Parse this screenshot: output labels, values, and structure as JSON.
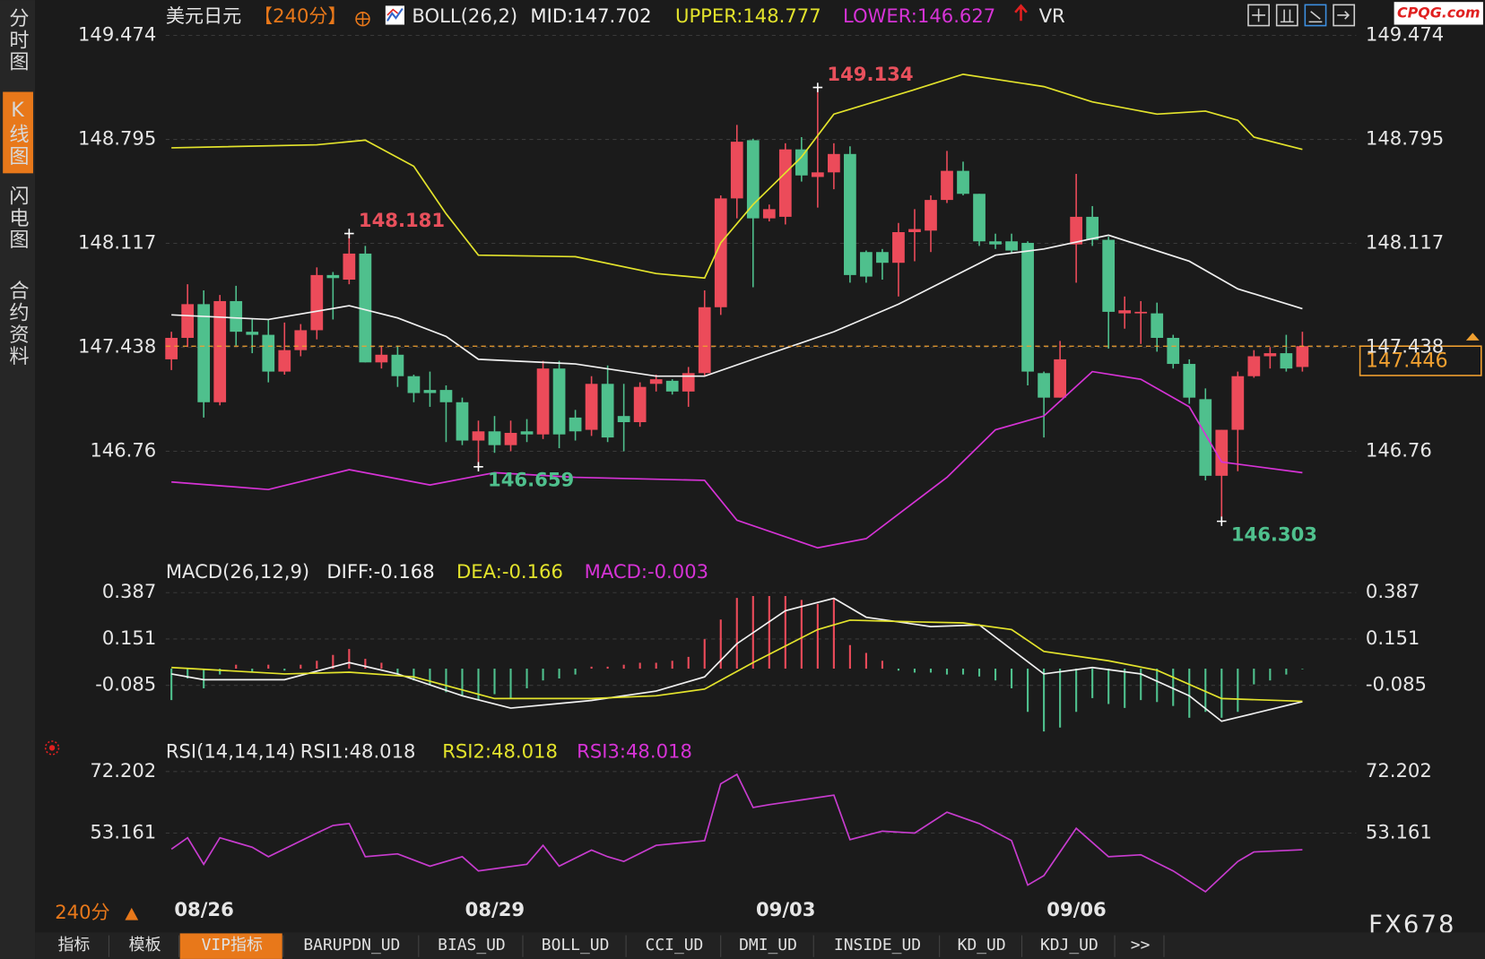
{
  "header": {
    "watermark": "CPQG.com",
    "brand": "FX678",
    "period_selector": "240分"
  },
  "sidebar": [
    "分时图",
    "K线图",
    "闪电图",
    "合约资料"
  ],
  "tabs": [
    "指标",
    "模板",
    "VIP指标",
    "BARUPDN_UD",
    "BIAS_UD",
    "BOLL_UD",
    "CCI_UD",
    "DMI_UD",
    "INSIDE_UD",
    "KD_UD",
    "KDJ_UD",
    ">>"
  ],
  "chart_data": [
    {
      "type": "candlestick",
      "title": "美元日元",
      "period": "【240分】",
      "indicator": "BOLL(26,2)",
      "extra": "VR",
      "up_color": "#ec4b5a",
      "down_color": "#4fc08d",
      "categories": [
        "08/26",
        null,
        null,
        null,
        null,
        null,
        null,
        null,
        null,
        null,
        null,
        null,
        null,
        null,
        null,
        null,
        null,
        null,
        "08/29",
        null,
        null,
        null,
        null,
        null,
        null,
        null,
        null,
        null,
        null,
        null,
        null,
        null,
        null,
        null,
        null,
        null,
        "09/03",
        null,
        null,
        null,
        null,
        null,
        null,
        null,
        null,
        null,
        null,
        null,
        null,
        null,
        null,
        null,
        null,
        null,
        "09/06",
        null,
        null,
        null,
        null,
        null,
        null,
        null,
        null,
        null,
        null,
        null,
        null,
        null,
        null,
        null,
        null
      ],
      "ohlc": [
        [
          147.36,
          147.54,
          147.29,
          147.5
        ],
        [
          147.5,
          147.85,
          147.44,
          147.72
        ],
        [
          147.72,
          147.81,
          146.98,
          147.08
        ],
        [
          147.08,
          147.78,
          147.06,
          147.74
        ],
        [
          147.74,
          147.84,
          147.45,
          147.54
        ],
        [
          147.54,
          147.62,
          147.4,
          147.52
        ],
        [
          147.52,
          147.62,
          147.21,
          147.28
        ],
        [
          147.28,
          147.6,
          147.26,
          147.42
        ],
        [
          147.42,
          147.59,
          147.38,
          147.55
        ],
        [
          147.55,
          147.96,
          147.49,
          147.91
        ],
        [
          147.91,
          147.93,
          147.62,
          147.89
        ],
        [
          147.88,
          148.181,
          147.85,
          148.05
        ],
        [
          148.05,
          148.1,
          147.34,
          147.34
        ],
        [
          147.34,
          147.45,
          147.3,
          147.39
        ],
        [
          147.39,
          147.45,
          147.18,
          147.25
        ],
        [
          147.25,
          147.26,
          147.08,
          147.14
        ],
        [
          147.16,
          147.28,
          147.05,
          147.14
        ],
        [
          147.16,
          147.19,
          146.82,
          147.08
        ],
        [
          147.08,
          147.11,
          146.8,
          146.83
        ],
        [
          146.83,
          146.96,
          146.659,
          146.89
        ],
        [
          146.89,
          146.99,
          146.75,
          146.8
        ],
        [
          146.8,
          146.96,
          146.76,
          146.88
        ],
        [
          146.89,
          146.97,
          146.82,
          146.87
        ],
        [
          146.87,
          147.35,
          146.84,
          147.3
        ],
        [
          147.3,
          147.35,
          146.78,
          146.87
        ],
        [
          146.98,
          147.03,
          146.83,
          146.89
        ],
        [
          146.9,
          147.25,
          146.86,
          147.2
        ],
        [
          147.2,
          147.32,
          146.82,
          146.85
        ],
        [
          146.99,
          147.2,
          146.76,
          146.95
        ],
        [
          146.95,
          147.21,
          146.92,
          147.18
        ],
        [
          147.2,
          147.26,
          147.15,
          147.23
        ],
        [
          147.22,
          147.23,
          147.13,
          147.15
        ],
        [
          147.15,
          147.31,
          147.05,
          147.27
        ],
        [
          147.27,
          147.81,
          147.25,
          147.7
        ],
        [
          147.7,
          148.43,
          147.65,
          148.41
        ],
        [
          148.41,
          148.89,
          148.28,
          148.78
        ],
        [
          148.79,
          148.8,
          147.83,
          148.28
        ],
        [
          148.28,
          148.37,
          148.26,
          148.34
        ],
        [
          148.29,
          148.77,
          148.24,
          148.73
        ],
        [
          148.73,
          148.81,
          148.52,
          148.56
        ],
        [
          148.55,
          149.134,
          148.35,
          148.58
        ],
        [
          148.58,
          148.77,
          148.47,
          148.7
        ],
        [
          148.7,
          148.75,
          147.86,
          147.91
        ],
        [
          148.06,
          148.07,
          147.86,
          147.9
        ],
        [
          148.06,
          148.08,
          147.88,
          147.99
        ],
        [
          147.99,
          148.25,
          147.77,
          148.19
        ],
        [
          148.19,
          148.34,
          148.0,
          148.21
        ],
        [
          148.2,
          148.43,
          148.06,
          148.4
        ],
        [
          148.4,
          148.72,
          148.38,
          148.59
        ],
        [
          148.59,
          148.65,
          148.43,
          148.44
        ],
        [
          148.44,
          148.44,
          148.1,
          148.13
        ],
        [
          148.13,
          148.18,
          148.08,
          148.11
        ],
        [
          148.13,
          148.18,
          148.05,
          148.07
        ],
        [
          148.12,
          148.13,
          147.19,
          147.28
        ],
        [
          147.27,
          147.28,
          146.85,
          147.11
        ],
        [
          147.11,
          147.48,
          147.11,
          147.36
        ],
        [
          148.11,
          148.57,
          147.86,
          148.29
        ],
        [
          148.29,
          148.36,
          148.1,
          148.14
        ],
        [
          148.14,
          148.16,
          147.43,
          147.67
        ],
        [
          147.66,
          147.77,
          147.56,
          147.68
        ],
        [
          147.66,
          147.74,
          147.46,
          147.67
        ],
        [
          147.66,
          147.73,
          147.41,
          147.5
        ],
        [
          147.5,
          147.52,
          147.3,
          147.33
        ],
        [
          147.33,
          147.36,
          147.07,
          147.11
        ],
        [
          147.1,
          147.17,
          146.57,
          146.6
        ],
        [
          146.6,
          146.9,
          146.303,
          146.9
        ],
        [
          146.9,
          147.28,
          146.63,
          147.25
        ],
        [
          147.25,
          147.42,
          147.24,
          147.38
        ],
        [
          147.38,
          147.44,
          147.3,
          147.4
        ],
        [
          147.4,
          147.52,
          147.28,
          147.3
        ],
        [
          147.31,
          147.54,
          147.28,
          147.446
        ]
      ],
      "series": [
        {
          "name": "MID:147.702",
          "color": "#f0f0f0",
          "x": [
            0,
            6,
            11,
            14,
            17,
            19,
            25,
            30,
            33,
            36,
            41,
            45,
            51,
            54,
            58,
            63,
            66,
            70
          ],
          "values": [
            147.65,
            147.62,
            147.71,
            147.63,
            147.51,
            147.36,
            147.33,
            147.25,
            147.25,
            147.36,
            147.54,
            147.72,
            148.04,
            148.08,
            148.17,
            148.0,
            147.82,
            147.69
          ]
        },
        {
          "name": "UPPER:148.777",
          "color": "#e3e32c",
          "x": [
            0,
            9,
            12,
            15,
            17,
            19,
            25,
            30,
            33,
            34,
            36,
            39,
            41,
            46,
            49,
            54,
            57,
            61,
            64,
            66,
            67,
            70
          ],
          "values": [
            148.74,
            148.76,
            148.79,
            148.62,
            148.31,
            148.04,
            148.03,
            147.92,
            147.89,
            148.12,
            148.37,
            148.68,
            148.96,
            149.12,
            149.22,
            149.14,
            149.04,
            148.96,
            148.98,
            148.92,
            148.81,
            148.73
          ]
        },
        {
          "name": "LOWER:146.627",
          "color": "#d633d6",
          "x": [
            0,
            6,
            11,
            16,
            20,
            25,
            33,
            35,
            40,
            43,
            48,
            51,
            54,
            57,
            60,
            63,
            65,
            70
          ],
          "values": [
            146.56,
            146.51,
            146.64,
            146.54,
            146.62,
            146.59,
            146.57,
            146.31,
            146.13,
            146.19,
            146.59,
            146.9,
            146.99,
            147.28,
            147.23,
            147.05,
            146.69,
            146.62
          ]
        }
      ],
      "annotations": [
        {
          "index": 11,
          "value": 148.181,
          "color": "#e8505c"
        },
        {
          "index": 40,
          "value": 149.134,
          "color": "#e8505c"
        },
        {
          "index": 19,
          "value": 146.659,
          "color": "#4fc08d"
        },
        {
          "index": 65,
          "value": 146.303,
          "color": "#4fc08d"
        }
      ],
      "last_price": {
        "value": 147.446,
        "color": "#f0a030"
      },
      "ylim": [
        146.06,
        149.55
      ],
      "yticks": [
        149.474,
        148.795,
        148.117,
        147.438,
        146.76
      ],
      "grid": true
    },
    {
      "type": "macd",
      "title": "MACD(26,12,9)",
      "up_color": "#ec4b5a",
      "down_color": "#4fc08d",
      "histogram": {
        "name": "MACD:-0.003",
        "color": "#d633d6",
        "values": [
          -0.16,
          -0.05,
          -0.1,
          -0.03,
          0.02,
          -0.02,
          0.02,
          -0.01,
          0.02,
          0.04,
          0.07,
          0.1,
          0.05,
          0.03,
          -0.03,
          -0.06,
          -0.08,
          -0.12,
          -0.14,
          -0.16,
          -0.13,
          -0.15,
          -0.1,
          -0.06,
          -0.05,
          -0.03,
          0.01,
          0.01,
          0.02,
          0.03,
          0.03,
          0.04,
          0.06,
          0.15,
          0.25,
          0.36,
          0.37,
          0.37,
          0.37,
          0.35,
          0.33,
          0.36,
          0.12,
          0.08,
          0.04,
          -0.01,
          -0.02,
          -0.02,
          -0.03,
          -0.03,
          -0.04,
          -0.06,
          -0.1,
          -0.22,
          -0.32,
          -0.3,
          -0.22,
          -0.15,
          -0.18,
          -0.2,
          -0.16,
          -0.17,
          -0.19,
          -0.25,
          -0.22,
          -0.25,
          -0.22,
          -0.08,
          -0.06,
          -0.03,
          -0.003
        ]
      },
      "series": [
        {
          "name": "DIFF:-0.168",
          "color": "#f0f0f0",
          "x": [
            0,
            2,
            7,
            11,
            14,
            18,
            21,
            26,
            30,
            33,
            35,
            38,
            41,
            43,
            47,
            50,
            54,
            57,
            60,
            63,
            65,
            70
          ],
          "values": [
            -0.027,
            -0.056,
            -0.056,
            0.031,
            -0.027,
            -0.138,
            -0.201,
            -0.162,
            -0.114,
            -0.042,
            0.127,
            0.295,
            0.358,
            0.262,
            0.214,
            0.223,
            -0.027,
            0.006,
            -0.027,
            -0.138,
            -0.268,
            -0.168
          ]
        },
        {
          "name": "DEA:-0.166",
          "color": "#e3e32c",
          "x": [
            0,
            7,
            11,
            15,
            20,
            26,
            30,
            33,
            36,
            40,
            42,
            46,
            49,
            52,
            54,
            58,
            61,
            65,
            70
          ],
          "values": [
            0.006,
            -0.027,
            -0.018,
            -0.042,
            -0.152,
            -0.152,
            -0.138,
            -0.104,
            0.031,
            0.199,
            0.247,
            0.238,
            0.233,
            0.199,
            0.088,
            0.04,
            -0.008,
            -0.152,
            -0.166
          ]
        }
      ],
      "ylim": [
        -0.355,
        0.416
      ],
      "yticks": [
        0.387,
        0.151,
        -0.085
      ],
      "grid": true
    },
    {
      "type": "rsi",
      "title": "RSI(14,14,14)",
      "indicator_labels": [
        {
          "text": "RSI1:48.018",
          "color": "#e6e6e6"
        },
        {
          "text": "RSI2:48.018",
          "color": "#e3e32c"
        },
        {
          "text": "RSI3:48.018",
          "color": "#d633d6"
        }
      ],
      "series": [
        {
          "color": "#c83ccf",
          "x": [
            0,
            1,
            2,
            3,
            5,
            6,
            9,
            10,
            11,
            12,
            14,
            16,
            18,
            19,
            22,
            23,
            24,
            26,
            27,
            28,
            30,
            33,
            34,
            35,
            36,
            37,
            39,
            41,
            42,
            44,
            46,
            48,
            50,
            52,
            53,
            54,
            56,
            58,
            60,
            62,
            64,
            66,
            67,
            70
          ],
          "values": [
            48.18,
            51.7,
            43.49,
            51.7,
            48.77,
            45.84,
            53.16,
            55.5,
            56.09,
            45.84,
            46.72,
            42.91,
            45.84,
            41.45,
            43.49,
            49.35,
            42.91,
            47.89,
            45.84,
            44.37,
            49.35,
            50.82,
            68.39,
            71.32,
            61.07,
            61.95,
            63.41,
            64.88,
            51.11,
            53.75,
            53.16,
            59.6,
            56.09,
            50.82,
            37.05,
            39.98,
            54.63,
            45.84,
            46.42,
            41.45,
            35.0,
            44.37,
            47.3,
            48.018
          ]
        }
      ],
      "ylim": [
        32.66,
        75.13
      ],
      "yticks": [
        72.202,
        53.161
      ],
      "grid": true
    }
  ]
}
